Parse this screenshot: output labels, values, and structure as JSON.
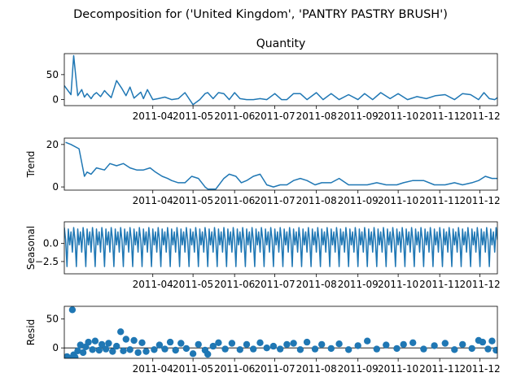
{
  "title": "Decomposition for ('United Kingdom', 'PANTRY PASTRY BRUSH')",
  "chart_data": [
    {
      "type": "line",
      "title": "Quantity",
      "ylabel": "",
      "ylim": [
        -12,
        92
      ],
      "yticks": [
        0,
        50
      ],
      "xrange": [
        "2011-01-25",
        "2011-12-14"
      ],
      "xticks": [
        "2011-04",
        "2011-05",
        "2011-06",
        "2011-07",
        "2011-08",
        "2011-09",
        "2011-10",
        "2011-11",
        "2011-12"
      ],
      "color": "#1f77b4",
      "x": [
        "2011-01-25",
        "2011-01-30",
        "2011-02-01",
        "2011-02-04",
        "2011-02-07",
        "2011-02-09",
        "2011-02-11",
        "2011-02-14",
        "2011-02-16",
        "2011-02-18",
        "2011-02-21",
        "2011-02-24",
        "2011-02-26",
        "2011-03-01",
        "2011-03-05",
        "2011-03-09",
        "2011-03-12",
        "2011-03-15",
        "2011-03-18",
        "2011-03-23",
        "2011-03-25",
        "2011-03-28",
        "2011-04-01",
        "2011-04-05",
        "2011-04-10",
        "2011-04-15",
        "2011-04-20",
        "2011-04-25",
        "2011-05-01",
        "2011-05-06",
        "2011-05-10",
        "2011-05-12",
        "2011-05-16",
        "2011-05-20",
        "2011-05-24",
        "2011-05-28",
        "2011-06-01",
        "2011-06-05",
        "2011-06-10",
        "2011-06-15",
        "2011-06-20",
        "2011-06-25",
        "2011-07-01",
        "2011-07-06",
        "2011-07-10",
        "2011-07-15",
        "2011-07-20",
        "2011-07-25",
        "2011-08-01",
        "2011-08-06",
        "2011-08-12",
        "2011-08-18",
        "2011-08-25",
        "2011-09-01",
        "2011-09-06",
        "2011-09-12",
        "2011-09-18",
        "2011-09-25",
        "2011-10-01",
        "2011-10-08",
        "2011-10-15",
        "2011-10-22",
        "2011-10-29",
        "2011-11-05",
        "2011-11-12",
        "2011-11-18",
        "2011-11-24",
        "2011-11-30",
        "2011-12-04",
        "2011-12-08",
        "2011-12-12",
        "2011-12-14"
      ],
      "values": [
        28,
        10,
        88,
        8,
        20,
        5,
        12,
        2,
        10,
        14,
        6,
        18,
        12,
        4,
        38,
        22,
        8,
        25,
        3,
        15,
        2,
        20,
        0,
        2,
        5,
        0,
        2,
        14,
        -10,
        0,
        12,
        14,
        2,
        14,
        12,
        0,
        14,
        2,
        0,
        0,
        2,
        0,
        12,
        0,
        0,
        12,
        12,
        0,
        14,
        0,
        12,
        0,
        10,
        0,
        12,
        0,
        14,
        2,
        12,
        0,
        6,
        2,
        8,
        10,
        0,
        12,
        10,
        0,
        14,
        2,
        0,
        4
      ]
    },
    {
      "type": "line",
      "title": "",
      "ylabel": "Trend",
      "ylim": [
        -1.5,
        23
      ],
      "yticks": [
        0,
        20
      ],
      "xrange": [
        "2011-01-25",
        "2011-12-14"
      ],
      "xticks": [
        "2011-04",
        "2011-05",
        "2011-06",
        "2011-07",
        "2011-08",
        "2011-09",
        "2011-10",
        "2011-11",
        "2011-12"
      ],
      "color": "#1f77b4",
      "x": [
        "2011-01-26",
        "2011-01-30",
        "2011-02-05",
        "2011-02-09",
        "2011-02-11",
        "2011-02-14",
        "2011-02-18",
        "2011-02-24",
        "2011-02-28",
        "2011-03-05",
        "2011-03-10",
        "2011-03-15",
        "2011-03-20",
        "2011-03-25",
        "2011-03-30",
        "2011-04-03",
        "2011-04-08",
        "2011-04-12",
        "2011-04-15",
        "2011-04-20",
        "2011-04-25",
        "2011-04-30",
        "2011-05-05",
        "2011-05-10",
        "2011-05-12",
        "2011-05-18",
        "2011-05-24",
        "2011-05-28",
        "2011-06-02",
        "2011-06-06",
        "2011-06-10",
        "2011-06-15",
        "2011-06-20",
        "2011-06-25",
        "2011-06-30",
        "2011-07-05",
        "2011-07-10",
        "2011-07-15",
        "2011-07-20",
        "2011-07-25",
        "2011-07-31",
        "2011-08-05",
        "2011-08-12",
        "2011-08-18",
        "2011-08-25",
        "2011-09-01",
        "2011-09-08",
        "2011-09-15",
        "2011-09-22",
        "2011-09-30",
        "2011-10-05",
        "2011-10-12",
        "2011-10-20",
        "2011-10-28",
        "2011-11-05",
        "2011-11-12",
        "2011-11-18",
        "2011-11-25",
        "2011-11-30",
        "2011-12-05",
        "2011-12-10",
        "2011-12-14"
      ],
      "values": [
        21,
        20,
        18,
        5,
        7,
        6,
        9,
        8,
        11,
        10,
        11,
        9,
        8,
        8,
        9,
        7,
        5,
        4,
        3,
        2,
        2,
        5,
        4,
        0,
        -1,
        -1,
        4,
        6,
        5,
        2,
        3,
        5,
        6,
        1,
        0,
        1,
        1,
        3,
        4,
        3,
        1,
        2,
        2,
        4,
        1,
        1,
        1,
        2,
        1,
        1,
        2,
        3,
        3,
        1,
        1,
        2,
        1,
        2,
        3,
        5,
        4,
        4
      ]
    },
    {
      "type": "line",
      "title": "",
      "ylabel": "Seasonal",
      "ylim": [
        -4.2,
        3.0
      ],
      "yticks": [
        -2.5,
        0.0
      ],
      "ytick_labels": [
        "−2.5",
        "0.0"
      ],
      "xrange": [
        "2011-01-25",
        "2011-12-14"
      ],
      "xticks": [
        "2011-04",
        "2011-05",
        "2011-06",
        "2011-07",
        "2011-08",
        "2011-09",
        "2011-10",
        "2011-11",
        "2011-12"
      ],
      "color": "#1f77b4",
      "period_days": 7,
      "pattern": [
        2.2,
        0.5,
        -3.2,
        2.0,
        -0.2,
        1.6,
        -1.2
      ]
    },
    {
      "type": "scatter",
      "title": "",
      "ylabel": "Resid",
      "ylim": [
        -18,
        72
      ],
      "yticks": [
        0,
        50
      ],
      "xrange": [
        "2011-01-25",
        "2011-12-14"
      ],
      "xticks": [
        "2011-04",
        "2011-05",
        "2011-06",
        "2011-07",
        "2011-08",
        "2011-09",
        "2011-10",
        "2011-11",
        "2011-12"
      ],
      "color": "#1f77b4",
      "baseline": 0,
      "x": [
        "2011-01-27",
        "2011-01-29",
        "2011-01-31",
        "2011-02-01",
        "2011-02-02",
        "2011-02-04",
        "2011-02-06",
        "2011-02-08",
        "2011-02-10",
        "2011-02-12",
        "2011-02-15",
        "2011-02-17",
        "2011-02-20",
        "2011-02-22",
        "2011-02-25",
        "2011-02-27",
        "2011-03-02",
        "2011-03-05",
        "2011-03-08",
        "2011-03-10",
        "2011-03-12",
        "2011-03-15",
        "2011-03-18",
        "2011-03-21",
        "2011-03-24",
        "2011-03-27",
        "2011-04-02",
        "2011-04-06",
        "2011-04-10",
        "2011-04-14",
        "2011-04-18",
        "2011-04-22",
        "2011-04-26",
        "2011-05-01",
        "2011-05-05",
        "2011-05-10",
        "2011-05-12",
        "2011-05-16",
        "2011-05-20",
        "2011-05-25",
        "2011-05-30",
        "2011-06-05",
        "2011-06-10",
        "2011-06-15",
        "2011-06-20",
        "2011-06-25",
        "2011-06-30",
        "2011-07-05",
        "2011-07-10",
        "2011-07-15",
        "2011-07-20",
        "2011-07-25",
        "2011-07-31",
        "2011-08-05",
        "2011-08-12",
        "2011-08-18",
        "2011-08-25",
        "2011-09-01",
        "2011-09-08",
        "2011-09-15",
        "2011-09-22",
        "2011-09-30",
        "2011-10-05",
        "2011-10-12",
        "2011-10-20",
        "2011-10-28",
        "2011-11-05",
        "2011-11-12",
        "2011-11-18",
        "2011-11-25",
        "2011-11-30",
        "2011-12-03",
        "2011-12-07",
        "2011-12-10",
        "2011-12-13"
      ],
      "values": [
        -15,
        -18,
        66,
        -12,
        -16,
        -5,
        5,
        -8,
        2,
        10,
        -3,
        12,
        -4,
        6,
        -2,
        8,
        -6,
        3,
        28,
        -5,
        15,
        -3,
        13,
        -8,
        9,
        -6,
        -3,
        5,
        -2,
        10,
        -4,
        8,
        -1,
        -10,
        6,
        -4,
        -11,
        3,
        9,
        -2,
        8,
        -3,
        6,
        -2,
        9,
        0,
        3,
        -2,
        6,
        8,
        -3,
        10,
        -2,
        6,
        -1,
        7,
        -3,
        4,
        12,
        -2,
        5,
        -1,
        6,
        9,
        -2,
        4,
        8,
        -3,
        6,
        -1,
        13,
        10,
        -2,
        12,
        -4
      ]
    }
  ]
}
